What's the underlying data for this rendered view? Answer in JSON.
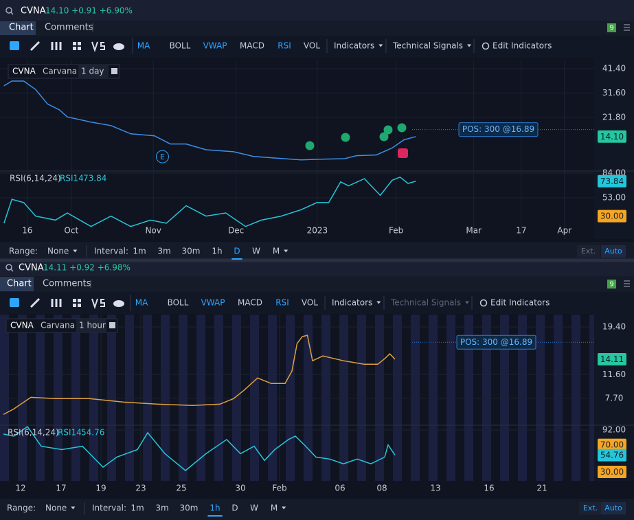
{
  "ui": {
    "panels": [
      {
        "symbol": "CVNA",
        "quote": "14.10 +0.91 +6.90%",
        "tabs": [
          "Chart",
          "Comments"
        ],
        "badge": "9",
        "indicators": [
          {
            "label": "MA",
            "active": true
          },
          {
            "label": "BOLL",
            "active": false
          },
          {
            "label": "VWAP",
            "active": true
          },
          {
            "label": "MACD",
            "active": false
          },
          {
            "label": "RSI",
            "active": true
          },
          {
            "label": "VOL",
            "active": false
          }
        ],
        "indicators_menu": "Indicators",
        "signals_menu": "Technical Signals",
        "signals_enabled": true,
        "edit": "Edit Indicators",
        "range_label": "Range:",
        "range": "None",
        "interval_label": "Interval:",
        "intervals": [
          "1m",
          "3m",
          "30m",
          "1h",
          "D",
          "W",
          "M"
        ],
        "active_interval": 4,
        "ext": "Ext.",
        "auto": "Auto"
      },
      {
        "symbol": "CVNA",
        "quote": "14.11 +0.92 +6.98%",
        "tabs": [
          "Chart",
          "Comments"
        ],
        "badge": "9",
        "indicators": [
          {
            "label": "MA",
            "active": true
          },
          {
            "label": "BOLL",
            "active": false
          },
          {
            "label": "VWAP",
            "active": true
          },
          {
            "label": "MACD",
            "active": false
          },
          {
            "label": "RSI",
            "active": true
          },
          {
            "label": "VOL",
            "active": false
          }
        ],
        "indicators_menu": "Indicators",
        "signals_menu": "Technical Signals",
        "signals_enabled": false,
        "edit": "Edit Indicators",
        "range_label": "Range:",
        "range": "None",
        "interval_label": "Interval:",
        "intervals": [
          "1m",
          "3m",
          "30m",
          "1h",
          "D",
          "W",
          "M"
        ],
        "active_interval": 3,
        "ext": "Ext.",
        "auto": "Auto"
      }
    ]
  },
  "chart_data": [
    {
      "type": "line",
      "symbol": "CVNA",
      "name": "Carvana",
      "interval": "1 day",
      "color": "#3d8ee8",
      "x": [
        1,
        3,
        6,
        9,
        12,
        15,
        17,
        23,
        28,
        33,
        39,
        43,
        47,
        52,
        59,
        64,
        69,
        76,
        81,
        87,
        90,
        95,
        99,
        102,
        105
      ],
      "values": [
        34.5,
        36.4,
        36.4,
        33,
        27.2,
        24.8,
        22,
        19.9,
        18.5,
        15.2,
        14.4,
        11.1,
        11.1,
        8.8,
        8,
        6.1,
        5.5,
        4.7,
        5,
        5.2,
        6.4,
        6.7,
        9.5,
        12.8,
        14.1
      ],
      "xlim": [
        0,
        150
      ],
      "ylim": [
        0.5,
        44.7
      ],
      "yticks": [
        {
          "value": 41.4,
          "label": "41.40"
        },
        {
          "value": 31.6,
          "label": "31.60"
        },
        {
          "value": 21.8,
          "label": "21.80"
        }
      ],
      "last": {
        "value": 14.1,
        "label": "14.10",
        "color": "#26c6a0"
      },
      "position": {
        "label": "POS: 300 @16.89",
        "price": 16.89
      },
      "annotations": [
        {
          "text": "E",
          "x": 41,
          "y": 6
        }
      ]
    },
    {
      "type": "line",
      "title": "RSI(6,14,24)",
      "xlim": [
        0,
        150
      ],
      "ylim": [
        1.2,
        85.7
      ],
      "series": [
        {
          "name": "RSI14",
          "color": "#26c6da",
          "last": 73.84,
          "x": [
            1,
            3,
            6,
            9,
            14,
            17,
            23,
            28,
            33,
            38,
            42,
            47,
            52,
            57,
            62,
            66,
            71,
            76,
            80,
            83,
            86,
            88,
            92,
            96,
            99,
            101,
            103,
            105
          ],
          "values": [
            21,
            51,
            47,
            30,
            25,
            34,
            17,
            30,
            17,
            25,
            21,
            43,
            30,
            34,
            17,
            25,
            30,
            38,
            47,
            47,
            73,
            68,
            77,
            56,
            75,
            79,
            71,
            73.84
          ]
        }
      ],
      "yticks": [
        {
          "value": 84,
          "label": "84.00"
        },
        {
          "value": 53,
          "label": "53.00"
        }
      ],
      "badges": [
        {
          "value": 73.84,
          "color": "#26c6da"
        },
        {
          "value": 30,
          "label": "30.00",
          "color": "#f5a623"
        }
      ],
      "xticks": [
        {
          "value": 6.9,
          "label": "16"
        },
        {
          "value": 18,
          "label": "Oct"
        },
        {
          "value": 38.7,
          "label": "Nov"
        },
        {
          "value": 59.6,
          "label": "Dec"
        },
        {
          "value": 80.1,
          "label": "2023"
        },
        {
          "value": 100,
          "label": "Feb"
        },
        {
          "value": 119.6,
          "label": "Mar"
        },
        {
          "value": 131.6,
          "label": "17"
        },
        {
          "value": 142.5,
          "label": "Apr"
        }
      ]
    },
    {
      "type": "line",
      "symbol": "CVNA",
      "name": "Carvana",
      "interval": "1 hour",
      "color": "#e0a040",
      "x": [
        2,
        8,
        18,
        32,
        52,
        72,
        92,
        112,
        128,
        136,
        142,
        150,
        158,
        166,
        170,
        173,
        176,
        179,
        182,
        188,
        200,
        212,
        220,
        224,
        227,
        230
      ],
      "values": [
        5.05,
        5.95,
        7.87,
        7.65,
        7.65,
        7.08,
        6.74,
        6.52,
        6.74,
        7.65,
        9.0,
        11.04,
        10.13,
        10.13,
        12.17,
        16.69,
        17.82,
        18.04,
        13.86,
        14.65,
        13.86,
        13.3,
        13.3,
        14.2,
        15.0,
        14.11
      ],
      "xlim": [
        0,
        346
      ],
      "ylim": [
        3.63,
        21.43
      ],
      "yticks": [
        {
          "value": 19.4,
          "label": "19.40"
        },
        {
          "value": 11.6,
          "label": "11.60"
        },
        {
          "value": 7.7,
          "label": "7.70"
        }
      ],
      "last": {
        "value": 14.11,
        "color": "#26c6a0"
      },
      "position": {
        "label": "POS: 300 @16.89",
        "price": 16.89
      }
    },
    {
      "type": "line",
      "title": "RSI(6,14,24)",
      "xlim": [
        0,
        346
      ],
      "ylim": [
        16.8,
        98.1
      ],
      "series": [
        {
          "name": "RSI14",
          "color": "#26c6da",
          "last": 54.76,
          "x": [
            2,
            8,
            16,
            24,
            36,
            48,
            60,
            68,
            80,
            86,
            96,
            108,
            120,
            132,
            140,
            148,
            154,
            160,
            168,
            172,
            178,
            184,
            192,
            200,
            208,
            216,
            224,
            226,
            230
          ],
          "values": [
            86,
            83,
            97,
            68,
            63,
            68,
            37,
            52,
            63,
            88,
            57,
            32,
            57,
            78,
            57,
            68,
            47,
            63,
            78,
            83,
            68,
            52,
            49,
            42,
            49,
            42,
            52,
            70,
            54.76
          ]
        }
      ],
      "yticks": [
        {
          "value": 92,
          "label": "92.00"
        }
      ],
      "badges": [
        {
          "value": 70,
          "label": "70.00",
          "color": "#f5a623"
        },
        {
          "value": 54.76,
          "color": "#26c6da"
        },
        {
          "value": 30,
          "label": "30.00",
          "color": "#f5a623"
        }
      ],
      "xticks": [
        {
          "value": 12,
          "label": "12"
        },
        {
          "value": 35.6,
          "label": "17"
        },
        {
          "value": 58.8,
          "label": "19"
        },
        {
          "value": 82,
          "label": "23"
        },
        {
          "value": 105.6,
          "label": "25"
        },
        {
          "value": 140,
          "label": "30"
        },
        {
          "value": 162.8,
          "label": "Feb"
        },
        {
          "value": 198,
          "label": "06"
        },
        {
          "value": 222.4,
          "label": "08"
        },
        {
          "value": 253.6,
          "label": "13"
        },
        {
          "value": 284.8,
          "label": "16"
        },
        {
          "value": 315.6,
          "label": "21"
        }
      ]
    }
  ]
}
